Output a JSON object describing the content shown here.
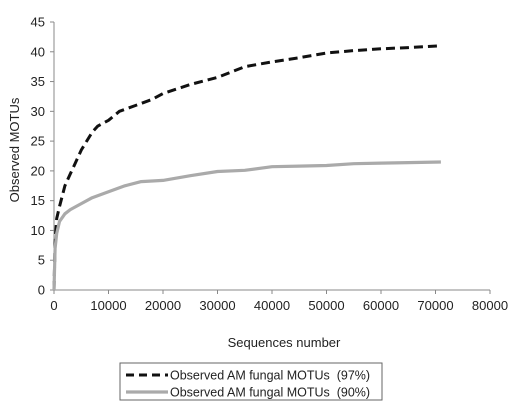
{
  "chart_data": {
    "type": "line",
    "title": "",
    "xlabel": "Sequences number",
    "ylabel": "Observed MOTUs",
    "xlim": [
      0,
      80000
    ],
    "ylim": [
      0,
      45
    ],
    "x_ticks": [
      0,
      10000,
      20000,
      30000,
      40000,
      50000,
      60000,
      70000,
      80000
    ],
    "y_ticks": [
      0,
      5,
      10,
      15,
      20,
      25,
      30,
      35,
      40,
      45
    ],
    "grid": false,
    "legend_position": "bottom",
    "series": [
      {
        "name": "Observed AM fungal MOTUs  (97%)",
        "style": "dashed",
        "color": "#111111",
        "points": [
          [
            0,
            0
          ],
          [
            200,
            8
          ],
          [
            500,
            12
          ],
          [
            1000,
            14
          ],
          [
            2000,
            17.5
          ],
          [
            3000,
            19.5
          ],
          [
            4000,
            21.5
          ],
          [
            5000,
            23.5
          ],
          [
            6000,
            25
          ],
          [
            7000,
            26.5
          ],
          [
            8000,
            27.5
          ],
          [
            10000,
            28.5
          ],
          [
            12000,
            30
          ],
          [
            15000,
            31
          ],
          [
            18000,
            32
          ],
          [
            20000,
            33
          ],
          [
            25000,
            34.5
          ],
          [
            30000,
            35.7
          ],
          [
            35000,
            37.5
          ],
          [
            40000,
            38.3
          ],
          [
            45000,
            39
          ],
          [
            50000,
            39.8
          ],
          [
            55000,
            40.2
          ],
          [
            60000,
            40.5
          ],
          [
            65000,
            40.7
          ],
          [
            71000,
            41
          ]
        ]
      },
      {
        "name": "Observed AM fungal MOTUs  (90%)",
        "style": "solid",
        "color": "#aaaaaa",
        "points": [
          [
            0,
            0
          ],
          [
            200,
            7
          ],
          [
            500,
            9.5
          ],
          [
            1000,
            11.5
          ],
          [
            2000,
            12.8
          ],
          [
            3000,
            13.5
          ],
          [
            5000,
            14.5
          ],
          [
            7000,
            15.5
          ],
          [
            10000,
            16.5
          ],
          [
            13000,
            17.5
          ],
          [
            16000,
            18.2
          ],
          [
            20000,
            18.4
          ],
          [
            25000,
            19.2
          ],
          [
            30000,
            19.9
          ],
          [
            35000,
            20.1
          ],
          [
            40000,
            20.7
          ],
          [
            45000,
            20.8
          ],
          [
            50000,
            20.9
          ],
          [
            55000,
            21.2
          ],
          [
            60000,
            21.3
          ],
          [
            65000,
            21.4
          ],
          [
            71000,
            21.5
          ]
        ]
      }
    ]
  }
}
